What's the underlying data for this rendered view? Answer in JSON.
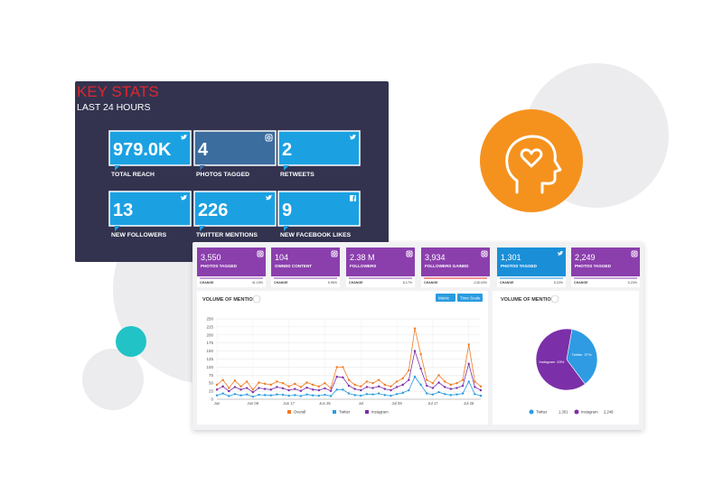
{
  "key_stats": {
    "title": "KEY STATS",
    "subtitle": "LAST 24 HOURS",
    "tiles": [
      {
        "value": "979.0K",
        "label": "TOTAL REACH"
      },
      {
        "value": "4",
        "label": "PHOTOS TAGGED"
      },
      {
        "value": "2",
        "label": "RETWEETS"
      },
      {
        "value": "13",
        "label": "NEW FOLLOWERS"
      },
      {
        "value": "226",
        "label": "TWITTER MENTIONS"
      },
      {
        "value": "9",
        "label": "NEW FACEBOOK LIKES"
      }
    ]
  },
  "kpi_cards": [
    {
      "value": "3,550",
      "label": "PHOTOS TAGGED",
      "change_label": "CHANGE",
      "change": "41.15%"
    },
    {
      "value": "104",
      "label": "OWNED CONTENT",
      "change_label": "CHANGE",
      "change": "5.95%"
    },
    {
      "value": "2.38 M",
      "label": "FOLLOWERS",
      "change_label": "CHANGE",
      "change": "8.17%"
    },
    {
      "value": "3,934",
      "label": "FOLLOWERS GAINED",
      "change_label": "CHANGE",
      "change": "-135.03%"
    },
    {
      "value": "1,301",
      "label": "PHOTOS TAGGED",
      "change_label": "CHANGE",
      "change": "5.23%"
    },
    {
      "value": "2,249",
      "label": "PHOTOS TAGGED",
      "change_label": "CHANGE",
      "change": "5.23%"
    }
  ],
  "chart_data": [
    {
      "type": "line",
      "title": "VOLUME OF MENTIONS",
      "buttons": [
        "Metric",
        "Time Scale"
      ],
      "categories": [
        "Jun",
        null,
        null,
        null,
        null,
        null,
        "Jun 09",
        null,
        null,
        null,
        null,
        null,
        "Jun 17",
        null,
        null,
        null,
        null,
        null,
        "Jun 25",
        null,
        null,
        null,
        null,
        null,
        "Jul",
        null,
        null,
        null,
        null,
        null,
        "Jul 09",
        null,
        null,
        null,
        null,
        null,
        "Jul 17",
        null,
        null,
        null,
        null,
        null,
        "Jul 25",
        null,
        null
      ],
      "series": [
        {
          "name": "Overall",
          "color": "#f07b22",
          "values": [
            45,
            60,
            35,
            58,
            40,
            55,
            30,
            52,
            48,
            45,
            55,
            50,
            40,
            48,
            38,
            52,
            45,
            40,
            50,
            35,
            100,
            100,
            60,
            45,
            40,
            55,
            50,
            60,
            45,
            40,
            55,
            65,
            90,
            220,
            140,
            60,
            50,
            75,
            55,
            45,
            50,
            60,
            170,
            55,
            40
          ]
        },
        {
          "name": "Twitter",
          "color": "#2a9be0",
          "values": [
            12,
            18,
            10,
            16,
            12,
            15,
            8,
            14,
            13,
            12,
            15,
            14,
            11,
            13,
            10,
            15,
            12,
            11,
            14,
            10,
            30,
            30,
            18,
            13,
            11,
            16,
            15,
            18,
            13,
            11,
            16,
            20,
            28,
            70,
            45,
            18,
            15,
            22,
            16,
            13,
            15,
            18,
            55,
            16,
            11
          ]
        },
        {
          "name": "Instagram",
          "color": "#7b2fa8",
          "values": [
            30,
            40,
            25,
            38,
            30,
            35,
            22,
            35,
            32,
            30,
            38,
            34,
            28,
            32,
            26,
            36,
            30,
            28,
            34,
            26,
            70,
            68,
            42,
            32,
            28,
            38,
            35,
            40,
            32,
            28,
            38,
            45,
            60,
            150,
            95,
            42,
            35,
            52,
            38,
            32,
            35,
            42,
            110,
            38,
            28
          ]
        }
      ],
      "ylim": [
        0,
        250
      ],
      "yticks": [
        0,
        25,
        50,
        75,
        100,
        125,
        150,
        175,
        200,
        225,
        250
      ],
      "grid": true
    },
    {
      "type": "pie",
      "title": "VOLUME OF MENTIONS",
      "categories": [
        "Twitter",
        "Instagram"
      ],
      "values": [
        37,
        63
      ],
      "value_labels": [
        "37%",
        "63%"
      ],
      "colors": [
        "#2e9be3",
        "#7b2fa8"
      ],
      "legend_counts": [
        {
          "value": 1301,
          "label": "1,301"
        },
        {
          "value": 2249,
          "label": "2,249"
        }
      ]
    }
  ]
}
